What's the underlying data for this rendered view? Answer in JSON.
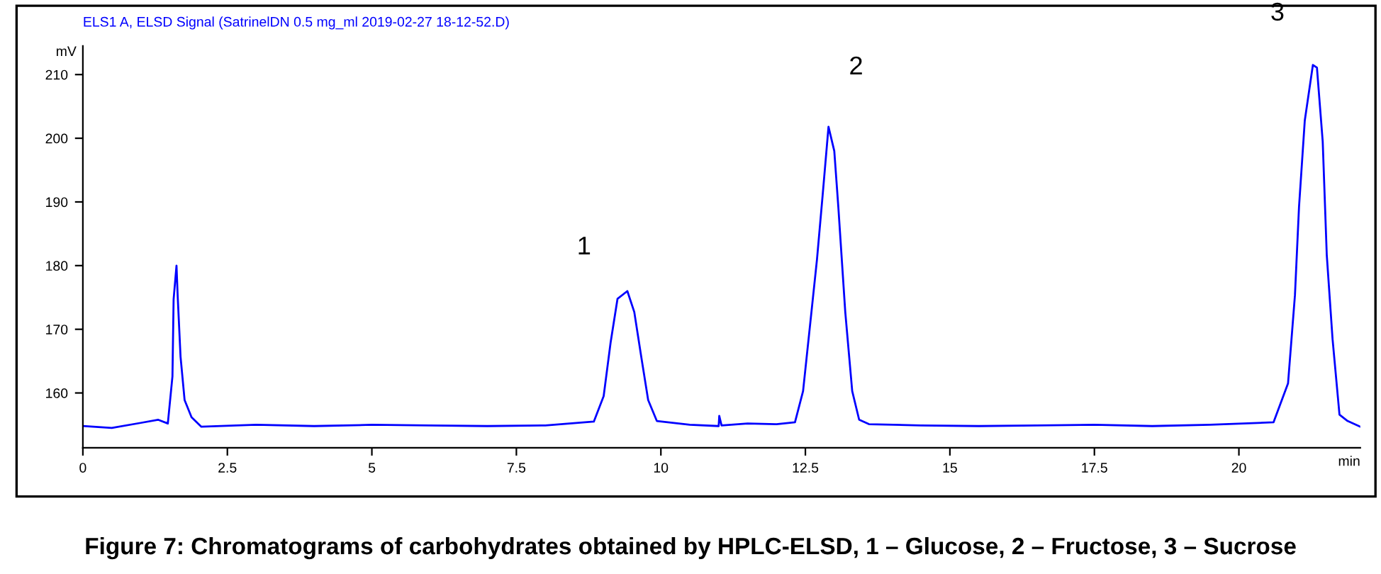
{
  "chart_data": {
    "type": "line",
    "title": "Figure 7: Chromatograms of carbohydrates obtained by HPLC-ELSD, 1 – Glucose, 2 – Fructose, 3 – Sucrose",
    "subtitle": "ELS1 A, ELSD Signal (SatrinelDN 0.5 mg_ml 2019-02-27 18-12-52.D)",
    "xlabel": "min",
    "ylabel": "mV",
    "series": [
      {
        "color": "#0000ff",
        "x": [
          0,
          0.5,
          1.0,
          1.3,
          1.47,
          1.55,
          1.57,
          1.62,
          1.64,
          1.69,
          1.76,
          1.88,
          2.05,
          3,
          4,
          5,
          6,
          7,
          8,
          8.84,
          9.01,
          9.13,
          9.25,
          9.42,
          9.54,
          9.66,
          9.78,
          9.93,
          10.5,
          11.0,
          11.01,
          11.05,
          11.5,
          12,
          12.32,
          12.46,
          12.58,
          12.7,
          12.8,
          12.9,
          13.0,
          13.07,
          13.19,
          13.31,
          13.43,
          13.6,
          14.5,
          15.5,
          16.5,
          17.5,
          18.5,
          19.5,
          20.6,
          20.85,
          20.97,
          21.04,
          21.14,
          21.28,
          21.35,
          21.45,
          21.52,
          21.62,
          21.74,
          21.88,
          22.1
        ],
        "values": [
          154.8,
          154.5,
          155.3,
          155.8,
          155.2,
          162.6,
          174.7,
          180,
          175.3,
          165.7,
          158.9,
          156.2,
          154.7,
          155,
          154.8,
          155,
          154.9,
          154.8,
          154.9,
          155.5,
          159.5,
          167.9,
          174.8,
          176,
          172.7,
          165.7,
          158.9,
          155.6,
          155,
          154.8,
          156.4,
          154.9,
          155.2,
          155.1,
          155.4,
          160.3,
          170.6,
          180.9,
          191.2,
          201.8,
          198,
          189.2,
          172.7,
          160.3,
          155.8,
          155.1,
          154.9,
          154.8,
          154.9,
          155,
          154.8,
          155,
          155.4,
          161.5,
          175.4,
          189.2,
          202.8,
          211.5,
          211.1,
          199.5,
          181.7,
          168.5,
          156.6,
          155.6,
          154.7
        ]
      }
    ],
    "annotations": [
      {
        "text": "1",
        "x": 9.42,
        "y": 176
      },
      {
        "text": "2",
        "x": 12.9,
        "y": 201.8
      },
      {
        "text": "3",
        "x": 21.28,
        "y": 211.5
      }
    ],
    "xlim": [
      0,
      22.1
    ],
    "ylim": [
      151.4,
      214.5
    ],
    "xticks": [
      0,
      2.5,
      5,
      7.5,
      10,
      12.5,
      15,
      17.5,
      20
    ],
    "yticks": [
      160,
      170,
      180,
      190,
      200,
      210
    ],
    "grid": false,
    "legend": false,
    "marker": "none",
    "line_style": "solid"
  }
}
